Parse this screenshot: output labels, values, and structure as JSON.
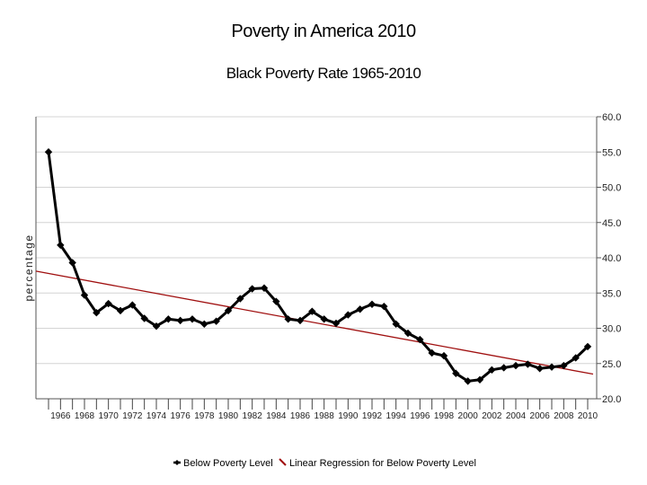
{
  "title": "Poverty in America 2010",
  "subtitle": "Black Poverty Rate 1965-2010",
  "chart_data": {
    "type": "line",
    "title": "Poverty in America 2010",
    "subtitle": "Black Poverty Rate 1965-2010",
    "ylabel": "percentage",
    "xlabel": "",
    "ylim": [
      20,
      60
    ],
    "y_ticks": [
      "20.0",
      "25.0",
      "30.0",
      "35.0",
      "40.0",
      "45.0",
      "50.0",
      "55.0",
      "60.0"
    ],
    "y_axis_side": "right",
    "x_tick_labels": [
      "1966",
      "1968",
      "1970",
      "1972",
      "1974",
      "1976",
      "1978",
      "1980",
      "1982",
      "1984",
      "1986",
      "1988",
      "1990",
      "1992",
      "1994",
      "1996",
      "1998",
      "2000",
      "2002",
      "2004",
      "2006",
      "2008",
      "2010"
    ],
    "grid": "horizontal",
    "legend_position": "bottom",
    "x": [
      1965,
      1966,
      1967,
      1968,
      1969,
      1970,
      1971,
      1972,
      1973,
      1974,
      1975,
      1976,
      1977,
      1978,
      1979,
      1980,
      1981,
      1982,
      1983,
      1984,
      1985,
      1986,
      1987,
      1988,
      1989,
      1990,
      1991,
      1992,
      1993,
      1994,
      1995,
      1996,
      1997,
      1998,
      1999,
      2000,
      2001,
      2002,
      2003,
      2004,
      2005,
      2006,
      2007,
      2008,
      2009,
      2010
    ],
    "series": [
      {
        "name": "Below Poverty Level",
        "color": "#000000",
        "values": [
          55.0,
          41.8,
          39.3,
          34.7,
          32.2,
          33.5,
          32.5,
          33.3,
          31.4,
          30.3,
          31.3,
          31.1,
          31.3,
          30.6,
          31.0,
          32.5,
          34.2,
          35.6,
          35.7,
          33.8,
          31.3,
          31.1,
          32.4,
          31.3,
          30.7,
          31.9,
          32.7,
          33.4,
          33.1,
          30.6,
          29.3,
          28.4,
          26.5,
          26.1,
          23.6,
          22.5,
          22.7,
          24.1,
          24.4,
          24.7,
          24.9,
          24.3,
          24.5,
          24.7,
          25.8,
          27.4
        ]
      },
      {
        "name": "Linear Regression for Below  Poverty Level",
        "color": "#a01010",
        "type": "line",
        "values_endpoints": [
          38.1,
          23.5
        ]
      }
    ]
  }
}
